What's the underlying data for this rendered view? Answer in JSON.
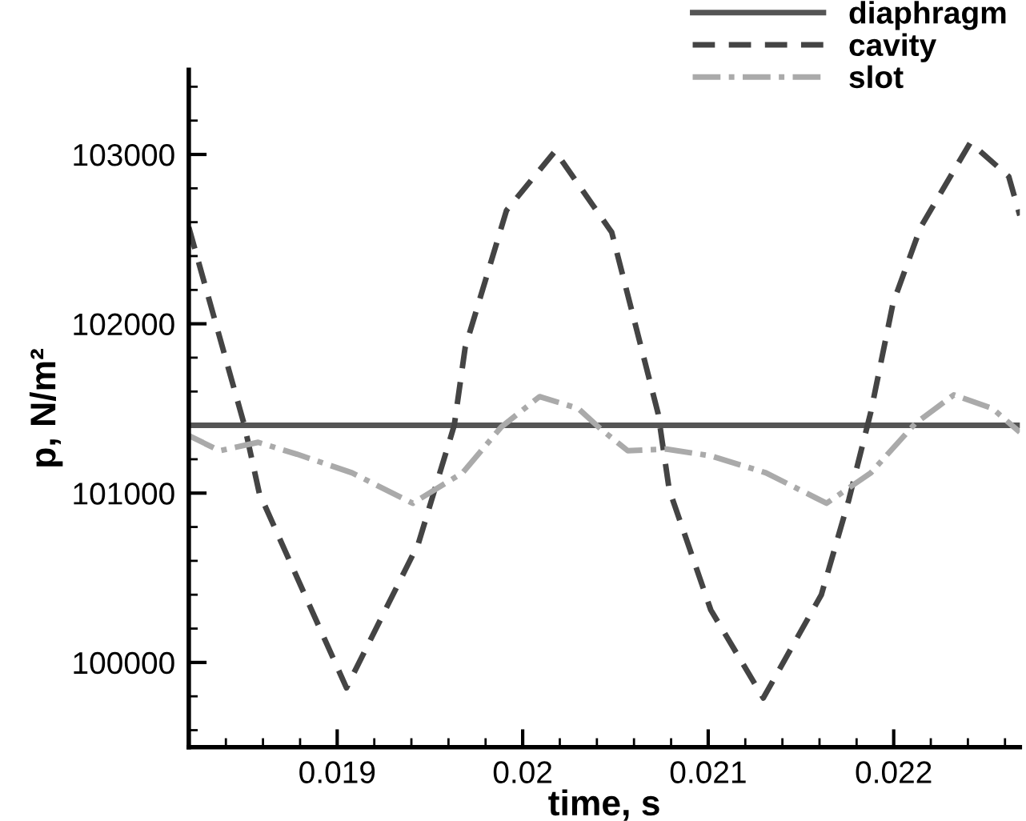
{
  "chart_data": {
    "type": "line",
    "xlabel": "time, s",
    "ylabel": "p, N/m²",
    "xlim": [
      0.0182,
      0.02268
    ],
    "ylim": [
      99500,
      103500
    ],
    "xticks": [
      {
        "value": 0.0182,
        "label": null
      },
      {
        "value": 0.0184,
        "label": null
      },
      {
        "value": 0.0186,
        "label": null
      },
      {
        "value": 0.0188,
        "label": null
      },
      0.019,
      {
        "value": 0.0192,
        "label": null
      },
      {
        "value": 0.0194,
        "label": null
      },
      {
        "value": 0.0196,
        "label": null
      },
      {
        "value": 0.0198,
        "label": null
      },
      0.02,
      {
        "value": 0.0202,
        "label": null
      },
      {
        "value": 0.0204,
        "label": null
      },
      {
        "value": 0.0206,
        "label": null
      },
      {
        "value": 0.0208,
        "label": null
      },
      0.021,
      {
        "value": 0.0212,
        "label": null
      },
      {
        "value": 0.0214,
        "label": null
      },
      {
        "value": 0.0216,
        "label": null
      },
      {
        "value": 0.0218,
        "label": null
      },
      0.022,
      {
        "value": 0.0222,
        "label": null
      },
      {
        "value": 0.0224,
        "label": null
      },
      {
        "value": 0.0226,
        "label": null
      }
    ],
    "yticks": [
      {
        "value": 99600,
        "label": null
      },
      {
        "value": 99800,
        "label": null
      },
      100000,
      {
        "value": 100200,
        "label": null
      },
      {
        "value": 100400,
        "label": null
      },
      {
        "value": 100600,
        "label": null
      },
      {
        "value": 100800,
        "label": null
      },
      101000,
      {
        "value": 101200,
        "label": null
      },
      {
        "value": 101400,
        "label": null
      },
      {
        "value": 101600,
        "label": null
      },
      {
        "value": 101800,
        "label": null
      },
      102000,
      {
        "value": 102200,
        "label": null
      },
      {
        "value": 102400,
        "label": null
      },
      {
        "value": 102600,
        "label": null
      },
      {
        "value": 102800,
        "label": null
      },
      103000,
      {
        "value": 103200,
        "label": null
      },
      {
        "value": 103400,
        "label": null
      }
    ],
    "grid": false,
    "legend": "top right",
    "marker": "none",
    "series": [
      {
        "name": "diaphragm",
        "color": "#555555",
        "line_style": "solid",
        "x": [
          0.0182,
          0.02268
        ],
        "values": [
          101400,
          101400
        ]
      },
      {
        "name": "cavity",
        "color": "#444444",
        "line_style": "dashed",
        "x": [
          0.0182,
          0.0185,
          0.01858,
          0.01905,
          0.019437,
          0.019631,
          0.01969,
          0.019913,
          0.020175,
          0.02048,
          0.02073,
          0.02079,
          0.021014,
          0.021297,
          0.02161,
          0.021758,
          0.021877,
          0.021996,
          0.022145,
          0.022413,
          0.02262,
          0.02268
        ],
        "values": [
          102570,
          101400,
          101000,
          99850,
          100700,
          101400,
          101860,
          102670,
          103020,
          102540,
          101470,
          101020,
          100310,
          99790,
          100400,
          100960,
          101480,
          102120,
          102570,
          103070,
          102870,
          102640
        ]
      },
      {
        "name": "slot",
        "color": "#aaaaaa",
        "line_style": "dashdot",
        "x": [
          0.0182,
          0.018366,
          0.018574,
          0.018783,
          0.01908,
          0.019407,
          0.019676,
          0.019884,
          0.020091,
          0.020299,
          0.020419,
          0.020567,
          0.020776,
          0.021014,
          0.021311,
          0.021638,
          0.021877,
          0.022115,
          0.022324,
          0.022532,
          0.02268
        ],
        "values": [
          101340,
          101250,
          101300,
          101230,
          101120,
          100940,
          101120,
          101390,
          101570,
          101500,
          101380,
          101250,
          101260,
          101220,
          101120,
          100940,
          101120,
          101410,
          101580,
          101500,
          101360
        ]
      }
    ]
  }
}
